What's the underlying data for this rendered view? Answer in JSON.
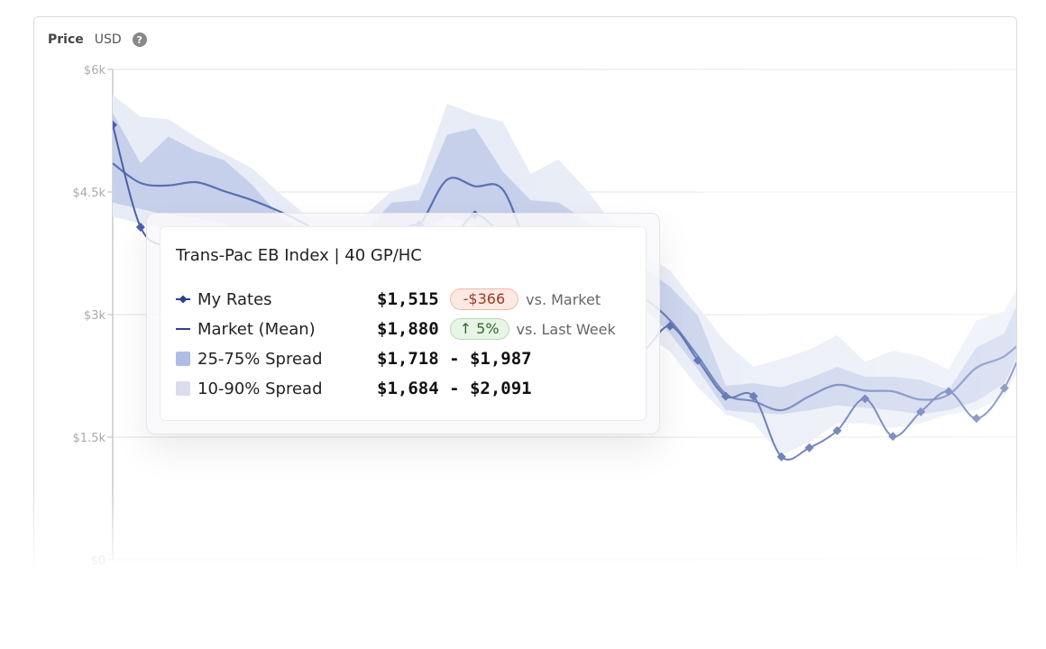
{
  "header": {
    "title": "Price",
    "unit": "USD",
    "help_icon": "question-circle-icon"
  },
  "colors": {
    "band_10_90": "#e8ecf6",
    "band_25_75": "#c6d0ea",
    "mean": "#5a70b3",
    "my_rates": "#4a60a8",
    "neg_badge": "#fde8e2",
    "pos_badge": "#e7f4e6"
  },
  "chart_data": {
    "type": "line",
    "ylabel": "",
    "ylim": [
      0,
      6000
    ],
    "yticks": [
      "$0",
      "$1.5k",
      "$3k",
      "$4.5k",
      "$6k"
    ],
    "ytick_values": [
      0,
      1500,
      3000,
      4500,
      6000
    ],
    "grid": true,
    "series": [
      {
        "name": "My Rates",
        "kind": "line-markers",
        "values": [
          5320,
          4070,
          3820,
          3650,
          3540,
          3540,
          3600,
          3650,
          3760,
          3870,
          3980,
          4100,
          3890,
          4220,
          3960,
          3650,
          3320,
          2990,
          2600,
          2550,
          2860,
          2440,
          2000,
          2000,
          1260,
          1370,
          1580,
          1970,
          1510,
          1810,
          2060,
          1730,
          2100,
          2880
        ]
      },
      {
        "name": "Market (Mean)",
        "kind": "line",
        "values": [
          4850,
          4610,
          4580,
          4620,
          4510,
          4400,
          4260,
          4090,
          3870,
          3710,
          3890,
          4090,
          4650,
          4570,
          4530,
          3760,
          3540,
          3430,
          3320,
          3210,
          2930,
          2490,
          2030,
          1940,
          1830,
          2000,
          2140,
          2070,
          2060,
          1960,
          2020,
          2350,
          2490,
          2790
        ]
      },
      {
        "name": "25-75% Spread",
        "kind": "band",
        "upper": [
          5470,
          4850,
          5180,
          5000,
          4890,
          4590,
          4200,
          3980,
          3980,
          3980,
          4370,
          4400,
          5200,
          5280,
          4750,
          4400,
          4370,
          4150,
          3870,
          3600,
          3340,
          2990,
          2130,
          2160,
          2110,
          2220,
          2360,
          2240,
          2240,
          2200,
          2080,
          2600,
          2770,
          3540
        ],
        "lower": [
          4370,
          4290,
          4220,
          4180,
          4110,
          3930,
          3760,
          3540,
          3540,
          3540,
          3540,
          3980,
          4200,
          4090,
          3980,
          3820,
          3650,
          3490,
          3320,
          3100,
          2770,
          2330,
          1830,
          1800,
          1780,
          1830,
          1890,
          1860,
          1830,
          1780,
          1830,
          1940,
          2160,
          2880
        ]
      },
      {
        "name": "10-90% Spread",
        "kind": "band",
        "upper": [
          5690,
          5420,
          5390,
          5170,
          4970,
          4790,
          4480,
          4200,
          4200,
          4200,
          4510,
          4610,
          5580,
          5450,
          5360,
          4720,
          4900,
          4530,
          4090,
          3760,
          3540,
          3100,
          2660,
          2360,
          2460,
          2570,
          2750,
          2420,
          2560,
          2490,
          2330,
          2930,
          3040,
          3650
        ],
        "lower": [
          4200,
          4110,
          4040,
          3960,
          3870,
          3710,
          3540,
          3320,
          3320,
          3320,
          3210,
          3650,
          3870,
          3820,
          3710,
          3540,
          3320,
          3150,
          2990,
          2770,
          2550,
          2110,
          1780,
          1670,
          1280,
          1440,
          1670,
          1670,
          1610,
          1670,
          1780,
          1830,
          2000,
          2660
        ]
      }
    ]
  },
  "tooltip": {
    "title": "Trans-Pac EB Index | 40 GP/HC",
    "rows": [
      {
        "label": "My Rates",
        "value": "$1,515",
        "badge": "-$366",
        "comparison": "vs. Market",
        "icon": "diamond-line-icon"
      },
      {
        "label": "Market (Mean)",
        "value": "$1,880",
        "badge": "↑ 5%",
        "comparison": "vs. Last Week",
        "icon": "line-icon"
      },
      {
        "label": "25-75% Spread",
        "value": "$1,718 - $1,987",
        "icon": "swatch-icon"
      },
      {
        "label": "10-90% Spread",
        "value": "$1,684 - $2,091",
        "icon": "swatch-icon"
      }
    ]
  }
}
